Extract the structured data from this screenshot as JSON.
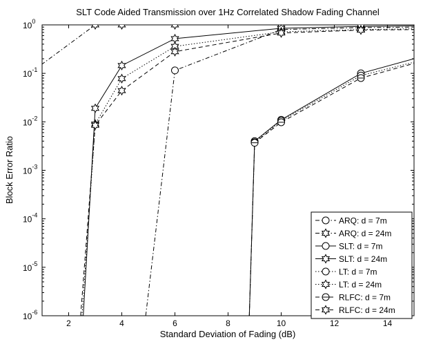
{
  "chart_data": {
    "type": "line",
    "title": "SLT Code Aided Transmission over 1Hz Correlated Shadow Fading Channel",
    "xlabel": "Standard Deviation of Fading (dB)",
    "ylabel": "Block Error Ratio",
    "xlim": [
      1,
      15
    ],
    "ylim": [
      1e-06,
      1
    ],
    "yscale": "log",
    "xticks": [
      2,
      4,
      6,
      8,
      10,
      12,
      14
    ],
    "xtick_labels": [
      "2",
      "4",
      "6",
      "8",
      "10",
      "12",
      "14"
    ],
    "yticks": [
      1e-06,
      1e-05,
      0.0001,
      0.001,
      0.01,
      0.1,
      1
    ],
    "ytick_labels": [
      {
        "base": "10",
        "exp": "-6"
      },
      {
        "base": "10",
        "exp": "-5"
      },
      {
        "base": "10",
        "exp": "-4"
      },
      {
        "base": "10",
        "exp": "-3"
      },
      {
        "base": "10",
        "exp": "-2"
      },
      {
        "base": "10",
        "exp": "-1"
      },
      {
        "base": "10",
        "exp": "0"
      }
    ],
    "grid": false,
    "legend_position": "bottom-right",
    "series": [
      {
        "name": "ARQ: d = 7m",
        "marker": "circle",
        "dash": "6,3,1.5,3",
        "x": [
          4.9,
          6,
          10,
          13,
          15
        ],
        "y": [
          1e-06,
          0.115,
          0.8,
          0.88,
          0.9
        ]
      },
      {
        "name": "ARQ: d = 24m",
        "marker": "star",
        "dash": "6,3,1.5,3",
        "x": [
          0,
          1,
          3,
          4,
          6,
          10,
          13,
          15
        ],
        "y": [
          0.09,
          0.155,
          1.0,
          1.0,
          1.0,
          1.0,
          1.0,
          1.0
        ]
      },
      {
        "name": "SLT: d = 7m",
        "marker": "circle",
        "dash": "",
        "x": [
          8.8,
          9,
          10,
          13,
          15
        ],
        "y": [
          1e-06,
          0.004,
          0.011,
          0.1,
          0.2
        ]
      },
      {
        "name": "SLT: d = 24m",
        "marker": "star",
        "dash": "",
        "x": [
          2.55,
          3,
          4,
          6,
          10,
          13,
          15
        ],
        "y": [
          1e-06,
          0.019,
          0.145,
          0.52,
          0.85,
          0.93,
          0.95
        ]
      },
      {
        "name": "LT: d = 7m",
        "marker": "circle",
        "dash": "1.5,2.5",
        "x": [
          8.8,
          9,
          10,
          13,
          15
        ],
        "y": [
          1e-06,
          0.0038,
          0.0105,
          0.09,
          0.17
        ]
      },
      {
        "name": "LT: d = 24m",
        "marker": "star",
        "dash": "1.5,2.5",
        "x": [
          2.5,
          3,
          4,
          6,
          10,
          13,
          15
        ],
        "y": [
          1e-06,
          0.009,
          0.078,
          0.36,
          0.72,
          0.8,
          0.83
        ]
      },
      {
        "name": "RLFC: d = 7m",
        "marker": "circle-bar",
        "dash": "6,4",
        "x": [
          8.8,
          9,
          10,
          13,
          15
        ],
        "y": [
          1e-06,
          0.0037,
          0.0098,
          0.08,
          0.16
        ]
      },
      {
        "name": "RLFC: d = 24m",
        "marker": "star",
        "dash": "6,4",
        "x": [
          2.45,
          3,
          4,
          6,
          10,
          13,
          15
        ],
        "y": [
          1e-06,
          0.0085,
          0.044,
          0.28,
          0.68,
          0.78,
          0.8
        ]
      }
    ]
  }
}
